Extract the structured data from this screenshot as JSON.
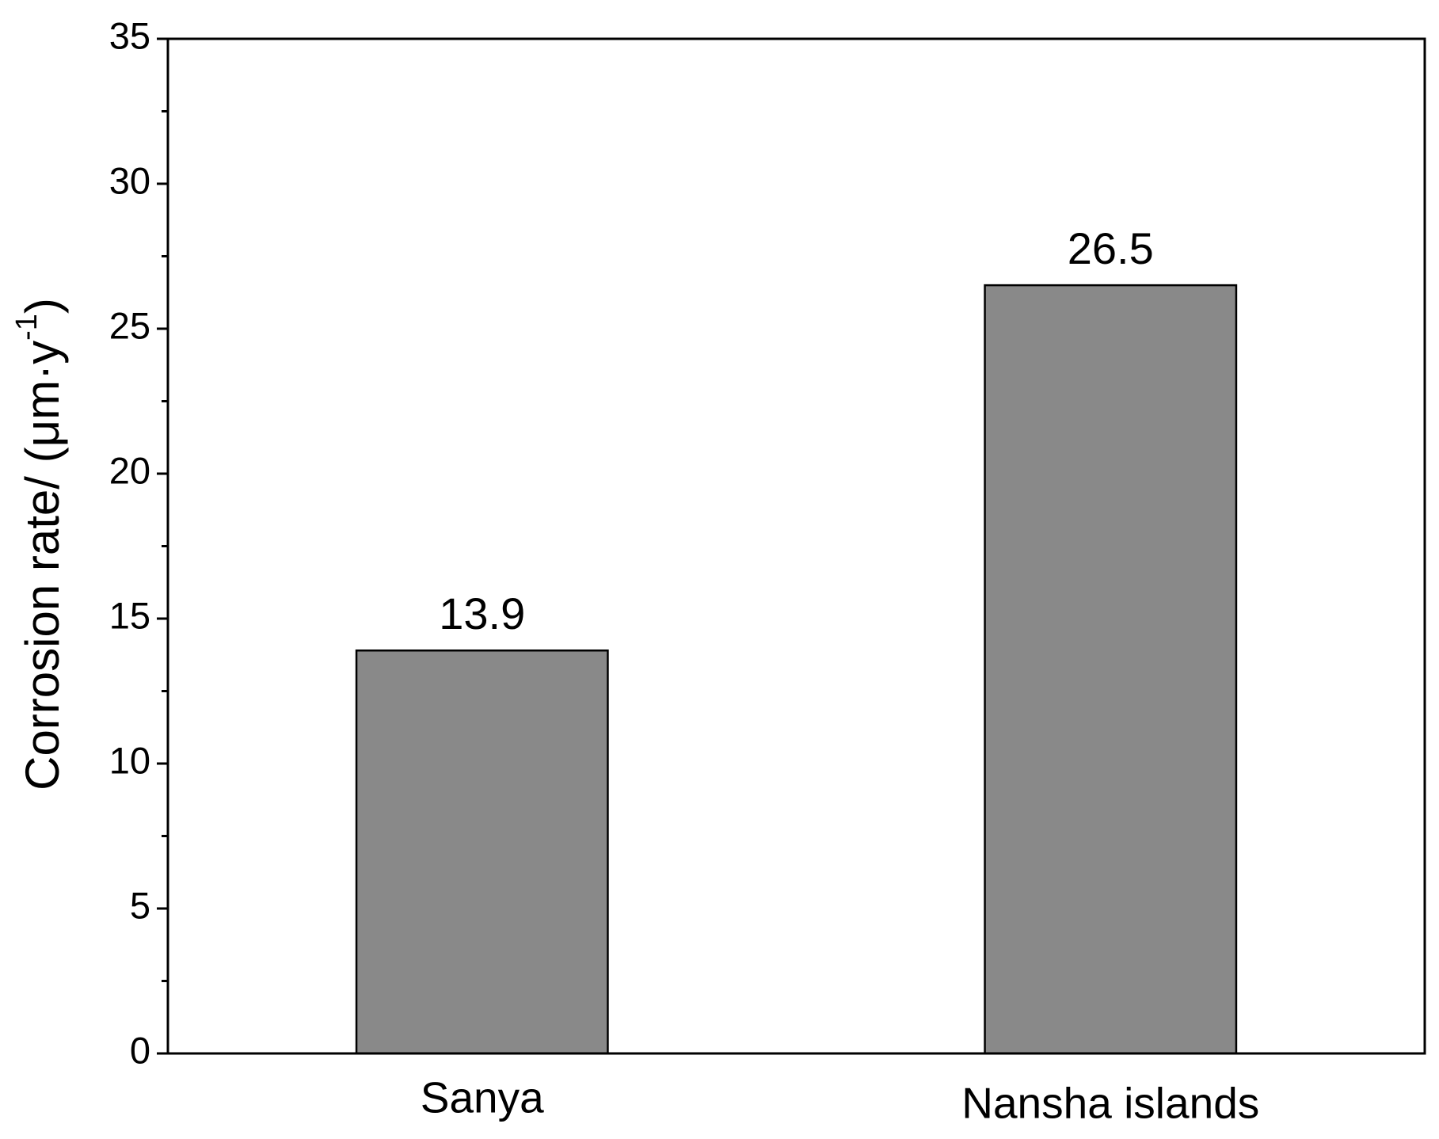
{
  "chart_data": {
    "type": "bar",
    "ylabel": [
      "Corrosion rate/ (μm·y",
      "-1",
      ")"
    ],
    "categories": [
      "Sanya",
      "Nansha islands"
    ],
    "values": [
      13.9,
      26.5
    ],
    "color": "#898989",
    "ylim": [
      0,
      35
    ],
    "yticks": [
      0,
      5,
      10,
      15,
      20,
      25,
      30,
      35
    ],
    "yminorticks": [
      2.5,
      7.5,
      12.5,
      17.5,
      22.5,
      27.5,
      32.5
    ],
    "grid": false
  }
}
